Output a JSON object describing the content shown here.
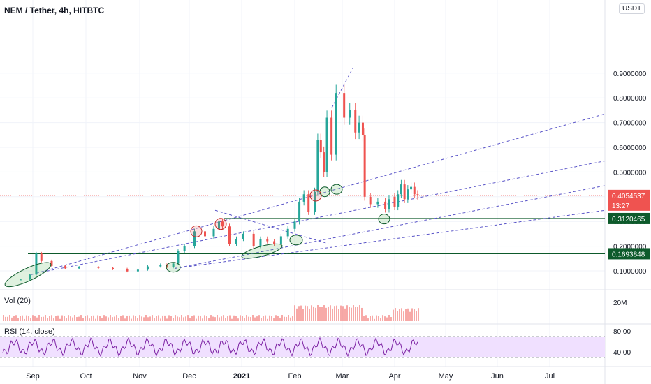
{
  "header": {
    "title": "NEM / Tether, 4h, HITBTC",
    "currency_button": "USDT"
  },
  "chart_data": {
    "type": "line",
    "title": "NEM / Tether, 4h, HITBTC",
    "price_axis": {
      "ticks": [
        0.1,
        0.2,
        0.3,
        0.4,
        0.5,
        0.6,
        0.7,
        0.8,
        0.9
      ],
      "tick_labels": [
        "0.1000000",
        "0.2000000",
        "0.3000000",
        "0.4000000",
        "0.5000000",
        "0.6000000",
        "0.7000000",
        "0.8000000",
        "0.9000000"
      ]
    },
    "time_axis": {
      "labels": [
        "Sep",
        "Oct",
        "Nov",
        "Dec",
        "2021",
        "Feb",
        "Mar",
        "Apr",
        "May",
        "Jun",
        "Jul"
      ],
      "bold": [
        "2021"
      ]
    },
    "price_series": {
      "dates": [
        "Aug 24",
        "Aug 30",
        "Sep 3",
        "Sep 6",
        "Sep 12",
        "Sep 20",
        "Sep 28",
        "Oct 8",
        "Oct 16",
        "Oct 24",
        "Oct 30",
        "Nov 6",
        "Nov 14",
        "Nov 18",
        "Nov 22",
        "Nov 25",
        "Nov 29",
        "Dec 4",
        "Dec 10",
        "Dec 15",
        "Dec 18",
        "Dec 20",
        "Dec 24",
        "Dec 28",
        "Jan 2",
        "Jan 8",
        "Jan 12",
        "Jan 16",
        "Jan 20",
        "Jan 24",
        "Jan 28",
        "Feb 1",
        "Feb 4",
        "Feb 7",
        "Feb 10",
        "Feb 14",
        "Feb 16",
        "Feb 18",
        "Feb 20",
        "Feb 22",
        "Feb 25",
        "Feb 28",
        "Mar 2",
        "Mar 5",
        "Mar 8",
        "Mar 10",
        "Mar 12",
        "Mar 13",
        "Mar 16",
        "Mar 20",
        "Mar 24",
        "Mar 26",
        "Mar 29",
        "Apr 1",
        "Apr 3",
        "Apr 5",
        "Apr 7",
        "Apr 9",
        "Apr 11",
        "Apr 13",
        "Apr 15"
      ],
      "close": [
        0.065,
        0.085,
        0.17,
        0.14,
        0.12,
        0.11,
        0.115,
        0.112,
        0.108,
        0.098,
        0.105,
        0.118,
        0.125,
        0.115,
        0.13,
        0.18,
        0.2,
        0.26,
        0.24,
        0.27,
        0.3,
        0.28,
        0.21,
        0.23,
        0.25,
        0.2,
        0.23,
        0.22,
        0.21,
        0.24,
        0.27,
        0.3,
        0.38,
        0.41,
        0.34,
        0.42,
        0.63,
        0.58,
        0.5,
        0.72,
        0.57,
        0.82,
        0.72,
        0.75,
        0.66,
        0.7,
        0.65,
        0.4,
        0.37,
        0.38,
        0.35,
        0.39,
        0.4,
        0.36,
        0.41,
        0.45,
        0.39,
        0.43,
        0.44,
        0.41,
        0.405
      ]
    },
    "horizontal_lines": [
      {
        "value": 0.3120465,
        "label": "0.3120465",
        "color": "#0d5a2b"
      },
      {
        "value": 0.1693848,
        "label": "0.1693848",
        "color": "#0d5a2b"
      },
      {
        "value": 0.4054537,
        "label": "0.4054537",
        "color": "#ef5350",
        "countdown": "13:27"
      }
    ],
    "volume_pane": {
      "label": "Vol (20)",
      "tick_labels": [
        "20M"
      ]
    },
    "rsi_pane": {
      "label": "RSI (14, close)",
      "tick_labels": [
        "80.00",
        "40.00"
      ],
      "band": [
        30,
        70
      ]
    },
    "colors": {
      "up": "#26a69a",
      "down": "#ef5350",
      "trend": "#5a55c8",
      "rsi": "#7b1fa2",
      "rsi_band": "#f0e0ff",
      "support": "#0d5a2b"
    }
  }
}
